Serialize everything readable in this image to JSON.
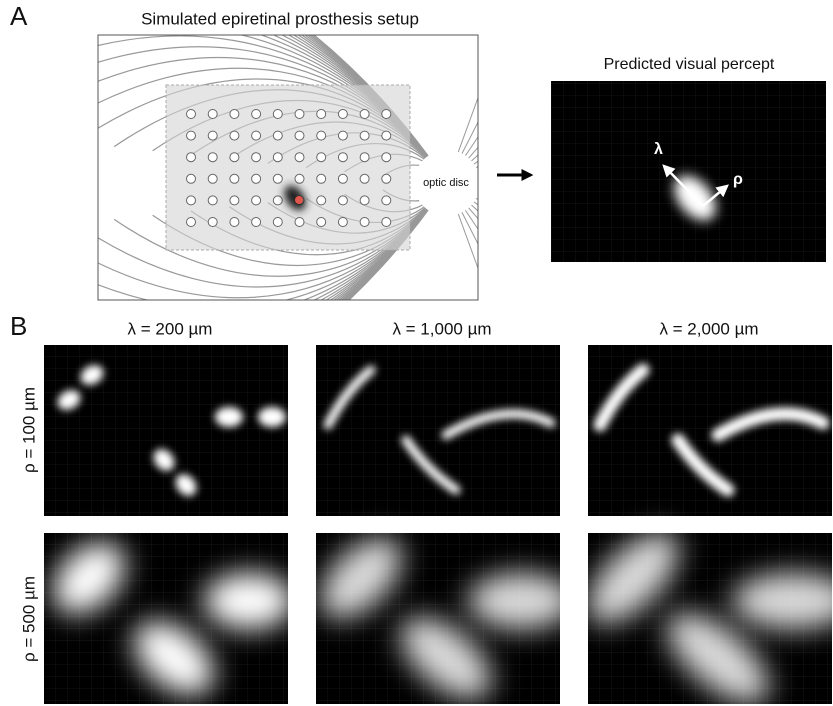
{
  "panel_a": {
    "label": "A",
    "setup_title": "Simulated epiretinal prosthesis setup",
    "optic_disc": "optic disc",
    "percept_title": "Predicted visual percept",
    "lambda_axis": "λ",
    "rho_axis": "ρ"
  },
  "panel_b": {
    "label": "B",
    "columns": [
      "λ = 200 µm",
      "λ = 1,000 µm",
      "λ = 2,000 µm"
    ],
    "rows": [
      "ρ = 100 µm",
      "ρ = 500 µm"
    ]
  }
}
